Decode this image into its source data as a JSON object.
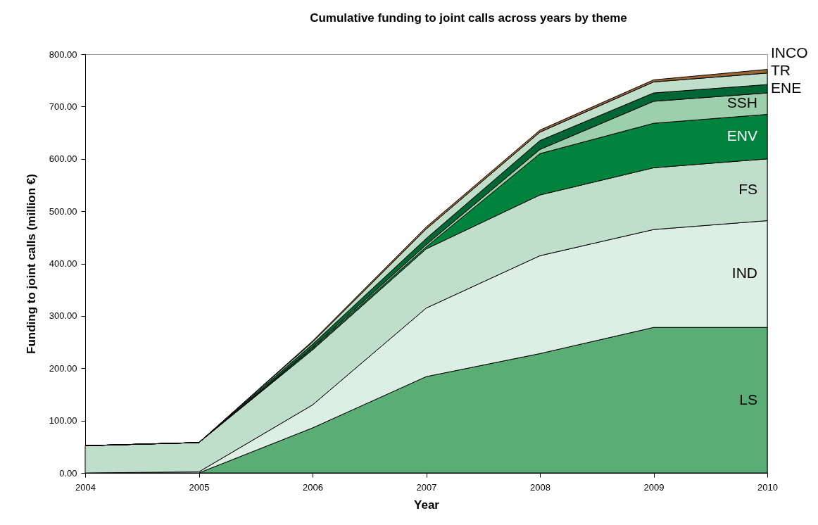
{
  "chart_data": {
    "type": "area",
    "stacked": true,
    "title": "Cumulative funding to joint calls across years by theme",
    "xlabel": "Year",
    "ylabel": "Funding to joint calls (million €)",
    "x": [
      2004,
      2005,
      2006,
      2007,
      2008,
      2009,
      2010
    ],
    "xlim": [
      2004,
      2010
    ],
    "xticks": [
      2004,
      2005,
      2006,
      2007,
      2008,
      2009,
      2010
    ],
    "ylim": [
      0,
      800
    ],
    "yticks": [
      {
        "value": 0,
        "label": "0.00"
      },
      {
        "value": 100,
        "label": "100.00"
      },
      {
        "value": 200,
        "label": "200.00"
      },
      {
        "value": 300,
        "label": "300.00"
      },
      {
        "value": 400,
        "label": "400.00"
      },
      {
        "value": 500,
        "label": "500.00"
      },
      {
        "value": 600,
        "label": "600.00"
      },
      {
        "value": 700,
        "label": "700.00"
      },
      {
        "value": 800,
        "label": "800.00"
      }
    ],
    "grid": false,
    "legend": false,
    "series": [
      {
        "name": "LS",
        "color": "#5aad75",
        "values": [
          0,
          0,
          86,
          184,
          228,
          278,
          278
        ]
      },
      {
        "name": "IND",
        "color": "#ddefe4",
        "values": [
          0,
          2,
          44,
          131,
          187,
          187,
          204
        ]
      },
      {
        "name": "FS",
        "color": "#bfdfca",
        "values": [
          52,
          56,
          105,
          113,
          116,
          118,
          118
        ]
      },
      {
        "name": "ENV",
        "color": "#00843d",
        "values": [
          0,
          0,
          3,
          4,
          79,
          85,
          85
        ]
      },
      {
        "name": "SSH",
        "color": "#9dcfac",
        "values": [
          0,
          0,
          2,
          4,
          8,
          42,
          41
        ]
      },
      {
        "name": "ENE",
        "color": "#006633",
        "values": [
          0,
          0,
          6,
          12,
          17,
          16,
          16
        ]
      },
      {
        "name": "TR",
        "color": "#bfdfca",
        "values": [
          0,
          0,
          4,
          18,
          16,
          21,
          22
        ]
      },
      {
        "name": "INCO",
        "color": "#996633",
        "values": [
          0,
          0,
          2,
          4,
          4,
          4,
          7
        ]
      }
    ]
  }
}
